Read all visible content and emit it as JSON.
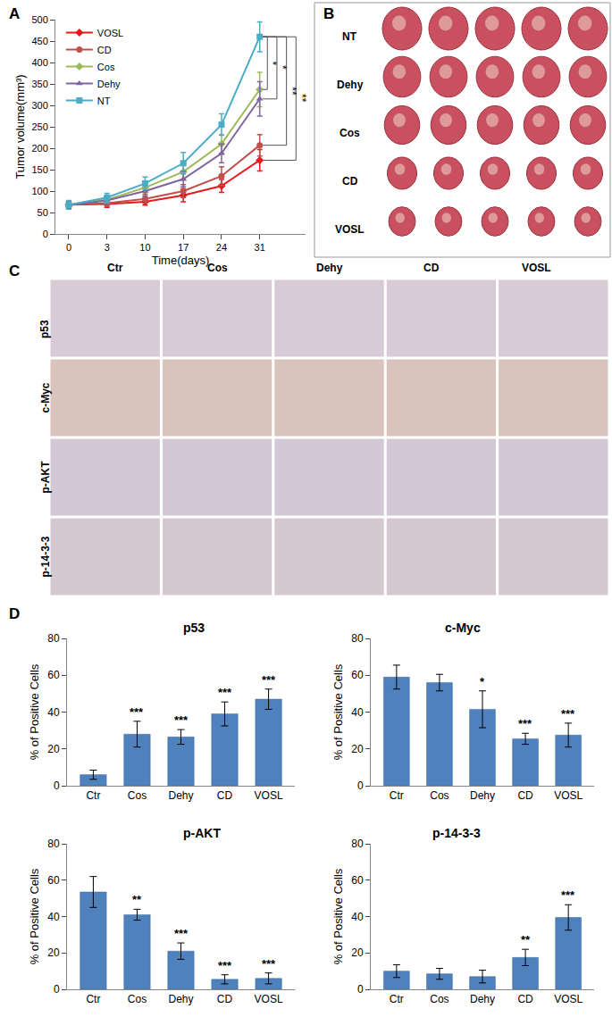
{
  "panel_labels": [
    "A",
    "B",
    "C",
    "D"
  ],
  "chart_data": [
    {
      "type": "line",
      "categories": [
        "0",
        "3",
        "10",
        "17",
        "24",
        "31"
      ],
      "x_label": "Time(days)",
      "y_label": "Tumor volume(mm³)",
      "ylim": [
        0,
        500
      ],
      "yticks": [
        0,
        50,
        100,
        150,
        200,
        250,
        300,
        350,
        400,
        450,
        500
      ],
      "grid": false,
      "legend": "upper left",
      "series": [
        {
          "name": "VOSL",
          "color": "#e8191c",
          "marker": "diamond",
          "values": [
            68,
            70,
            75,
            90,
            112,
            172
          ],
          "errors": [
            8,
            8,
            8,
            15,
            15,
            25
          ]
        },
        {
          "name": "CD",
          "color": "#c0504d",
          "marker": "circle",
          "values": [
            68,
            72,
            82,
            100,
            135,
            207
          ],
          "errors": [
            8,
            8,
            10,
            15,
            22,
            25
          ]
        },
        {
          "name": "Cos",
          "color": "#9bbb59",
          "marker": "diamond",
          "values": [
            68,
            80,
            108,
            145,
            210,
            337
          ],
          "errors": [
            8,
            8,
            12,
            20,
            22,
            40
          ]
        },
        {
          "name": "Dehy",
          "color": "#8064a2",
          "marker": "triangle-up",
          "values": [
            67,
            78,
            100,
            128,
            188,
            315
          ],
          "errors": [
            8,
            8,
            12,
            18,
            22,
            40
          ]
        },
        {
          "name": "NT",
          "color": "#4bacc6",
          "marker": "square",
          "values": [
            68,
            85,
            118,
            165,
            255,
            460
          ],
          "errors": [
            10,
            10,
            15,
            25,
            25,
            35
          ]
        }
      ],
      "annotations": [
        {
          "text": "*",
          "between": [
            "NT",
            "Cos"
          ]
        },
        {
          "text": "*",
          "between": [
            "NT",
            "Dehy"
          ]
        },
        {
          "text": "**",
          "between": [
            "NT",
            "CD"
          ]
        },
        {
          "text": "**",
          "between": [
            "NT",
            "VOSL"
          ]
        }
      ]
    },
    {
      "type": "bar",
      "title": "p53",
      "categories": [
        "Ctr",
        "Cos",
        "Dehy",
        "CD",
        "VOSL"
      ],
      "values": [
        6,
        28,
        26.5,
        39,
        47
      ],
      "errors": [
        2.5,
        7,
        4,
        6.5,
        5.5
      ],
      "significance": [
        null,
        "***",
        "***",
        "***",
        "***"
      ],
      "color": "#4f81bd",
      "y_label": "% of Positive Cells",
      "ylim": [
        0,
        80
      ],
      "yticks": [
        0,
        20,
        40,
        60,
        80
      ],
      "grid": false
    },
    {
      "type": "bar",
      "title": "c-Myc",
      "categories": [
        "Ctr",
        "Cos",
        "Dehy",
        "CD",
        "VOSL"
      ],
      "values": [
        59,
        56,
        41.5,
        25.5,
        27.5
      ],
      "errors": [
        6.5,
        4.5,
        10,
        3,
        6.5
      ],
      "significance": [
        null,
        null,
        "*",
        "***",
        "***"
      ],
      "color": "#4f81bd",
      "y_label": "% of Positive Cells",
      "ylim": [
        0,
        80
      ],
      "yticks": [
        0,
        20,
        40,
        60,
        80
      ],
      "grid": false
    },
    {
      "type": "bar",
      "title": "p-AKT",
      "categories": [
        "Ctr",
        "Cos",
        "Dehy",
        "CD",
        "VOSL"
      ],
      "values": [
        53.5,
        41,
        21,
        5.5,
        6
      ],
      "errors": [
        8.5,
        3,
        4.5,
        2.5,
        3
      ],
      "significance": [
        null,
        "**",
        "***",
        "***",
        "***"
      ],
      "color": "#4f81bd",
      "y_label": "% of Positive Cells",
      "ylim": [
        0,
        80
      ],
      "yticks": [
        0,
        20,
        40,
        60,
        80
      ],
      "grid": false
    },
    {
      "type": "bar",
      "title": "p-14-3-3",
      "categories": [
        "Ctr",
        "Cos",
        "Dehy",
        "CD",
        "VOSL"
      ],
      "values": [
        10,
        8.5,
        7,
        17.5,
        39.5
      ],
      "errors": [
        3.5,
        3,
        3.5,
        4.5,
        7
      ],
      "significance": [
        null,
        null,
        null,
        "**",
        "***"
      ],
      "color": "#4f81bd",
      "y_label": "% of Positive Cells",
      "ylim": [
        0,
        80
      ],
      "yticks": [
        0,
        20,
        40,
        60,
        80
      ],
      "grid": false
    }
  ],
  "photo_panels": {
    "B": {
      "rows": [
        "NT",
        "Dehy",
        "Cos",
        "CD",
        "VOSL"
      ],
      "samples_per_row": 5
    },
    "C": {
      "columns": [
        "Ctr",
        "Cos",
        "Dehy",
        "CD",
        "VOSL"
      ],
      "rows": [
        "p53",
        "c-Myc",
        "p-AKT",
        "p-14-3-3"
      ]
    }
  }
}
